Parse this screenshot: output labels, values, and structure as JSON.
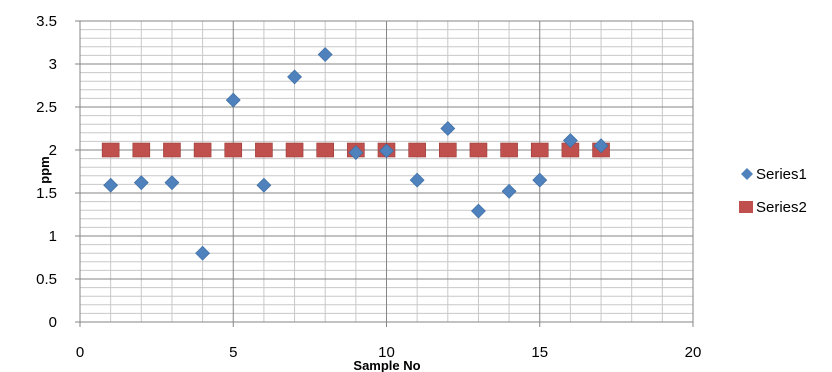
{
  "chart_data": {
    "type": "scatter",
    "title": "",
    "xlabel": "Sample No",
    "ylabel": "ppm",
    "xlim": [
      0,
      20
    ],
    "ylim": [
      0,
      3.5
    ],
    "x_major_ticks": [
      0,
      5,
      10,
      15,
      20
    ],
    "y_major_ticks": [
      0,
      0.5,
      1,
      1.5,
      2,
      2.5,
      3,
      3.5
    ],
    "x_major_tick_labels": [
      "0",
      "5",
      "10",
      "15",
      "20"
    ],
    "y_major_tick_labels": [
      "0",
      "0.5",
      "1",
      "1.5",
      "2",
      "2.5",
      "3",
      "3.5"
    ],
    "x_minor_step": 1,
    "y_minor_step": 0.1,
    "grid": true,
    "legend_position": "right",
    "series": [
      {
        "name": "Series1",
        "marker": "diamond",
        "color": "#4F81BD",
        "x": [
          1,
          2,
          3,
          4,
          5,
          6,
          7,
          8,
          9,
          10,
          11,
          12,
          13,
          14,
          15,
          16,
          17
        ],
        "y": [
          1.59,
          1.62,
          1.62,
          0.8,
          2.58,
          1.59,
          2.85,
          3.11,
          1.97,
          1.99,
          1.65,
          2.25,
          1.29,
          1.52,
          1.65,
          2.11,
          2.05
        ]
      },
      {
        "name": "Series2",
        "marker": "square",
        "color": "#C0504D",
        "x": [
          1,
          2,
          3,
          4,
          5,
          6,
          7,
          8,
          9,
          10,
          11,
          12,
          13,
          14,
          15,
          16,
          17
        ],
        "y": [
          2,
          2,
          2,
          2,
          2,
          2,
          2,
          2,
          2,
          2,
          2,
          2,
          2,
          2,
          2,
          2,
          2
        ]
      }
    ]
  }
}
